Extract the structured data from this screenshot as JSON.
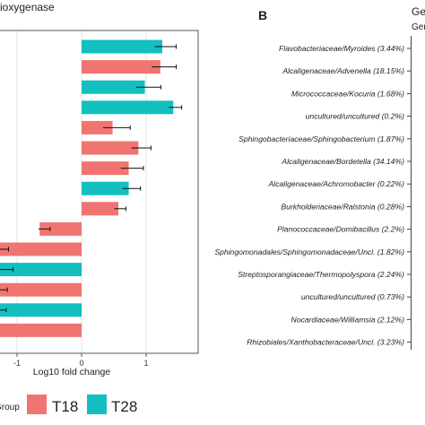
{
  "panel_a": {
    "title_fragment": "ioxygenase",
    "xlabel": "Log10 fold change",
    "x_ticks": [
      "-1",
      "0",
      "1"
    ],
    "legend": {
      "title": "Group",
      "items": [
        "T18",
        "T28"
      ]
    }
  },
  "panel_b": {
    "letter": "B",
    "corner_text_1": "Ge",
    "corner_text_2": "Gen",
    "rows": [
      "Flavobacteriaceae/Myroides (3.44%)",
      "Alcaligenaceae/Advenella (18.15%)",
      "Micrococcaceae/Kocuria (1.68%)",
      "uncultured/uncultured (0.2%)",
      "Sphingobacteriaceae/Sphingobacterium (1.87%)",
      "Alcaligenaceae/Bordetella (34.14%)",
      "Alcaligenaceae/Achromobacter (0.22%)",
      "Burkholderiaceae/Ralstonia (0.28%)",
      "Planococcaceae/Domibacillus (2.2%)",
      "Sphingomonadales/Sphingomonadaceae/Uncl. (1.82%)",
      "Streptosporangiaceae/Thermopolyspora (2.24%)",
      "uncultured/uncultured (0.73%)",
      "Nocardiaceae/Williamsia (2.12%)",
      "Rhizobiales/Xanthobacteraceae/Uncl. (3.23%)"
    ]
  },
  "colors": {
    "T18": "#f07570",
    "T28": "#13bfbf"
  },
  "chart_data": {
    "type": "bar",
    "orientation": "horizontal",
    "xlabel": "Log10 fold change",
    "x_ticks": [
      -1,
      0,
      1
    ],
    "xlim": [
      -1.6,
      1.9
    ],
    "bars": [
      {
        "series": "T28",
        "value": 1.25,
        "error": 0.33
      },
      {
        "series": "T18",
        "value": 1.22,
        "error": 0.38
      },
      {
        "series": "T28",
        "value": 0.98,
        "error": 0.38
      },
      {
        "series": "T28",
        "value": 1.42,
        "error": 0.2
      },
      {
        "series": "T18",
        "value": 0.48,
        "error": 0.42
      },
      {
        "series": "T18",
        "value": 0.88,
        "error": 0.3
      },
      {
        "series": "T18",
        "value": 0.73,
        "error": 0.35
      },
      {
        "series": "T28",
        "value": 0.73,
        "error": 0.28
      },
      {
        "series": "T18",
        "value": 0.57,
        "error": 0.18
      },
      {
        "series": "T18",
        "value": -0.65,
        "error": 0.18
      },
      {
        "series": "T18",
        "value": -1.6,
        "error": 0.52
      },
      {
        "series": "T28",
        "value": -1.6,
        "error": 0.6
      },
      {
        "series": "T18",
        "value": -1.6,
        "error": 0.5
      },
      {
        "series": "T28",
        "value": -1.6,
        "error": 0.48
      },
      {
        "series": "T18",
        "value": -1.6,
        "error": 0.35
      }
    ]
  }
}
